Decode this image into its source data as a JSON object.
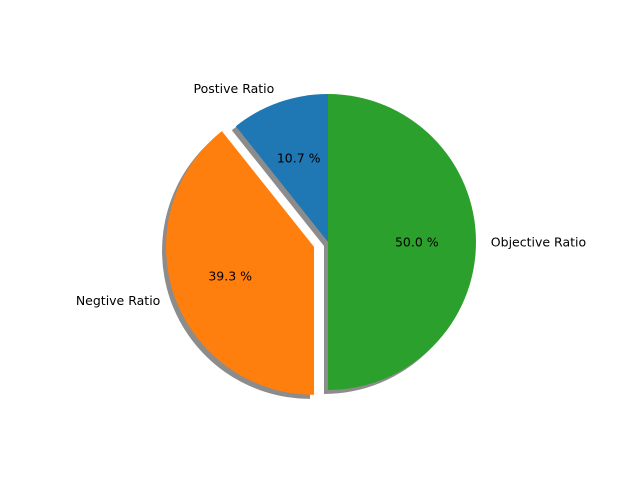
{
  "chart_data": {
    "type": "pie",
    "title": "",
    "start_angle": 90,
    "counterclock": true,
    "shadow": true,
    "slices": [
      {
        "label": "Postive Ratio",
        "value": 10.7,
        "pct_label": "10.7 %",
        "color": "#1f77b4",
        "explode": 0.0
      },
      {
        "label": "Negtive Ratio",
        "value": 39.3,
        "pct_label": "39.3 %",
        "color": "#ff7f0e",
        "explode": 0.1
      },
      {
        "label": "Objective Ratio",
        "value": 50.0,
        "pct_label": "50.0 %",
        "color": "#2ca02c",
        "explode": 0.0
      }
    ]
  }
}
